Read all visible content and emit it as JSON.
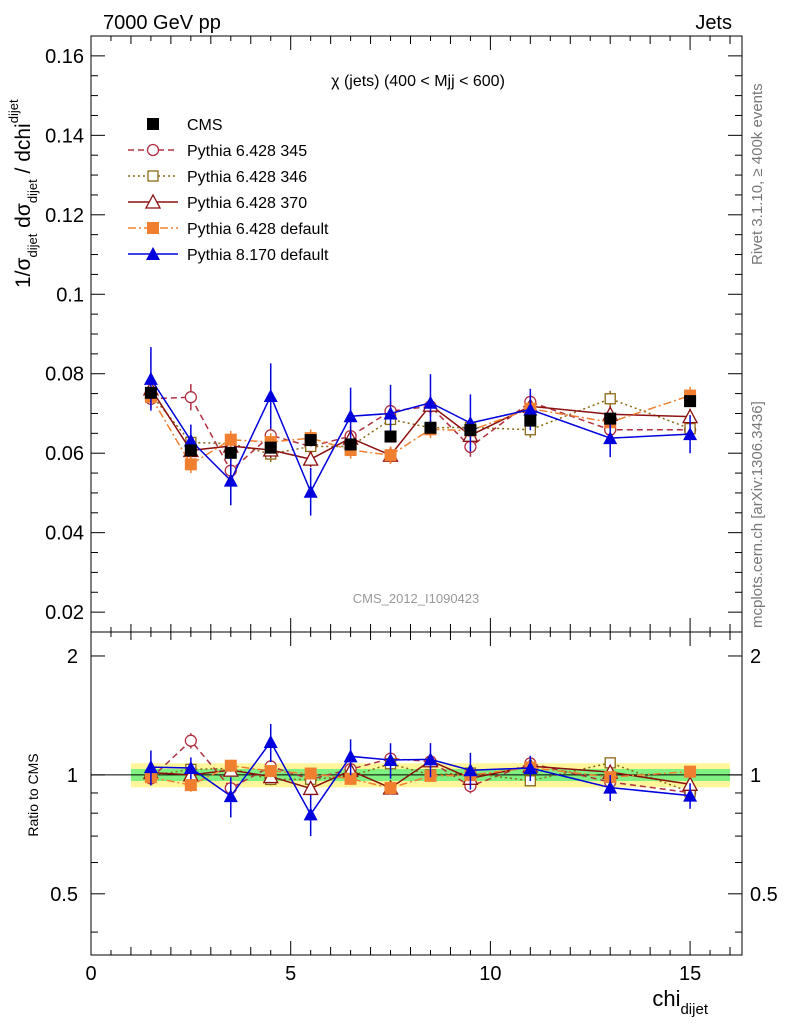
{
  "header": {
    "left": "7000 GeV pp",
    "right": "Jets"
  },
  "side": {
    "rivet": "Rivet 3.1.10, ≥ 400k events",
    "mcplots": "mcplots.cern.ch [arXiv:1306.3436]"
  },
  "chart_data": {
    "type": "line",
    "title": "χ (jets) (400 < Mjj <  600)",
    "watermark": "CMS_2012_I1090423",
    "xlabel": "chi",
    "xlabel_sub": "dijet",
    "ylabel": {
      "part1": "1/σ",
      "sub1": "dijet",
      "part2": " dσ",
      "sub2": "dijet",
      "part3": " / dchi",
      "sub3": "dijet"
    },
    "ratio_ylabel": "Ratio to CMS",
    "xlim": [
      0,
      16.3
    ],
    "ylim": [
      0.015,
      0.165
    ],
    "ratio_ylim": [
      0.35,
      2.3
    ],
    "ratio_log_scale": true,
    "x_ticks": [
      "0",
      "5",
      "10",
      "15"
    ],
    "y_ticks": [
      "0.02",
      "0.04",
      "0.06",
      "0.08",
      "0.1",
      "0.12",
      "0.14",
      "0.16"
    ],
    "ratio_ticks": [
      "0.5",
      "1",
      "2"
    ],
    "x": [
      1.5,
      2.5,
      3.5,
      4.5,
      5.5,
      6.5,
      7.5,
      8.5,
      9.5,
      11,
      13,
      15
    ],
    "series": [
      {
        "name": "CMS",
        "color": "#000000",
        "dash": "",
        "marker": "square-filled",
        "values": [
          0.0752,
          0.0607,
          0.0601,
          0.0614,
          0.0633,
          0.0622,
          0.0642,
          0.0664,
          0.0658,
          0.0682,
          0.0687,
          0.0731
        ]
      },
      {
        "name": "Pythia 6.428 345",
        "color": "#b03040",
        "dash": "6,4",
        "marker": "circle-open",
        "values": [
          0.0737,
          0.0741,
          0.0556,
          0.0645,
          0.0617,
          0.0643,
          0.0706,
          0.0718,
          0.0616,
          0.0729,
          0.0659,
          0.0659
        ],
        "errors": [
          0.0025,
          0.0033,
          0.0025,
          0.0025,
          0.0025,
          0.0025,
          0.0025,
          0.0025,
          0.0025,
          0.0025,
          0.0025,
          0.0025
        ]
      },
      {
        "name": "Pythia 6.428 346",
        "color": "#8b6914",
        "dash": "2,3",
        "marker": "square-open",
        "values": [
          0.0748,
          0.0627,
          0.0624,
          0.0598,
          0.0617,
          0.0617,
          0.0685,
          0.0664,
          0.0665,
          0.0659,
          0.0737,
          0.0662
        ],
        "errors": [
          0.002,
          0.002,
          0.002,
          0.002,
          0.002,
          0.002,
          0.002,
          0.002,
          0.002,
          0.002,
          0.002,
          0.002
        ]
      },
      {
        "name": "Pythia 6.428 370",
        "color": "#8b1010",
        "dash": "",
        "marker": "triangle-open",
        "values": [
          0.0762,
          0.0607,
          0.0618,
          0.0608,
          0.0585,
          0.0638,
          0.0595,
          0.0721,
          0.0645,
          0.0718,
          0.0698,
          0.0692
        ],
        "errors": [
          0.002,
          0.002,
          0.002,
          0.002,
          0.002,
          0.002,
          0.002,
          0.002,
          0.002,
          0.002,
          0.002,
          0.002
        ]
      },
      {
        "name": "Pythia 6.428 default",
        "color": "#f08030",
        "dash": "8,3,2,3",
        "marker": "square-filled",
        "values": [
          0.0742,
          0.0572,
          0.0634,
          0.0628,
          0.0638,
          0.0608,
          0.0595,
          0.066,
          0.0657,
          0.0712,
          0.0678,
          0.0745
        ],
        "errors": [
          0.0022,
          0.0022,
          0.0022,
          0.0022,
          0.0022,
          0.0022,
          0.0022,
          0.0022,
          0.0022,
          0.0022,
          0.0022,
          0.0022
        ]
      },
      {
        "name": "Pythia 8.170 default",
        "color": "#0000dd",
        "dash": "",
        "marker": "triangle-filled",
        "values": [
          0.0787,
          0.0632,
          0.0531,
          0.0744,
          0.0503,
          0.0693,
          0.07,
          0.0727,
          0.0676,
          0.071,
          0.0638,
          0.0648
        ],
        "errors": [
          0.008,
          0.004,
          0.0062,
          0.0082,
          0.006,
          0.0072,
          0.0072,
          0.0072,
          0.0072,
          0.0052,
          0.0048,
          0.0048
        ]
      }
    ]
  }
}
